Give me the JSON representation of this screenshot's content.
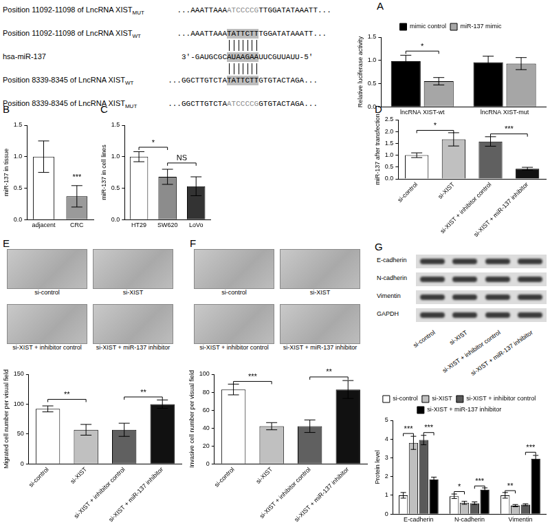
{
  "panel_letters": [
    "A",
    "B",
    "C",
    "D",
    "E",
    "F",
    "G"
  ],
  "sequence_alignment": {
    "rows": [
      {
        "label": "Position 11092-11098 of LncRNA XIST",
        "subscript": "MUT",
        "before": "...AAATTAAA",
        "site": "ATCCCCG",
        "after": "TTGGATATAAATT...",
        "site_style": "mutated"
      },
      {
        "label": "Position 11092-11098 of LncRNA XIST",
        "subscript": "WT",
        "before": "...AAATTAAA",
        "site": "TATTCTT",
        "after": "TGGATATAAATT...",
        "site_style": "highlighted"
      },
      {
        "label": "hsa-miR-137",
        "subscript": null,
        "before": "3'-GAUGCGC",
        "site": "AUAAGAA",
        "after": "UUCGUUAUU-5'",
        "site_style": "highlighted"
      },
      {
        "label": "Position 8339-8345 of LncRNA XIST",
        "subscript": "WT",
        "before": "...GGCTTGTCTA",
        "site": "TATTCTT",
        "after": "GTGTACTAGA...",
        "site_style": "highlighted"
      },
      {
        "label": "Position 8339-8345 of LncRNA XIST",
        "subscript": "MUT",
        "before": "...GGCTTGTCTA",
        "site": "ATCCCCG",
        "after": "GTGTACTAGA...",
        "site_style": "mutated"
      }
    ],
    "pairing": [
      [
        1,
        2
      ],
      [
        2,
        3
      ]
    ]
  },
  "image_panels": [
    {
      "captions": [
        "si-control",
        "si-XIST",
        "si-XIST + inhibitor control",
        "si-XIST + miR-137 inhibitor"
      ]
    },
    {
      "captions": [
        "si-control",
        "si-XIST",
        "si-XIST + inhibitor control",
        "si-XIST + miR-137 inhibitor"
      ]
    }
  ],
  "western_blot": {
    "proteins": [
      "E-cadherin",
      "N-cadherin",
      "Vimentin",
      "GAPDH"
    ],
    "lanes": [
      "si-control",
      "si-XIST",
      "si-XIST + inhibitor control",
      "si-XIST + miR-137 inhibitor"
    ]
  },
  "chart_data": [
    {
      "type": "bar",
      "y_label": "Relative luciferase activity",
      "categories": [
        "lncRNA XIST-wt",
        "lncRNA XIST-mut"
      ],
      "series": [
        {
          "name": "mimic control",
          "color": "#000000",
          "values": [
            0.98,
            0.96
          ],
          "errors": [
            0.13,
            0.13
          ]
        },
        {
          "name": "miR-137 mimic",
          "color": "#a6a6a6",
          "values": [
            0.55,
            0.93
          ],
          "errors": [
            0.08,
            0.13
          ]
        }
      ],
      "ylim": [
        0,
        1.5
      ],
      "yticks": [
        {
          "value": 0,
          "label": "0.0"
        },
        0.5,
        {
          "value": 1,
          "label": "1.0"
        },
        1.5
      ],
      "grid": false,
      "legend": "top",
      "annotations": [
        {
          "text": "*",
          "from": [
            0,
            0
          ],
          "to": [
            1,
            0
          ],
          "y": 1.2
        }
      ]
    },
    {
      "type": "bar",
      "y_label": "miR-137 in tissue",
      "categories": [
        "adjacent",
        "CRC"
      ],
      "values": [
        1.0,
        0.37
      ],
      "errors": [
        0.25,
        0.17
      ],
      "colors": [
        "#ffffff",
        "#9a9a9a"
      ],
      "ylim": [
        0,
        1.5
      ],
      "yticks": [
        {
          "value": 0,
          "label": "0.0"
        },
        0.5,
        {
          "value": 1,
          "label": "1.0"
        },
        1.5
      ],
      "grid": false,
      "annotations": [
        {
          "text": "***",
          "from": [
            0,
            1
          ],
          "y": 0.6
        }
      ]
    },
    {
      "type": "bar",
      "y_label": "miR-137 in cell lines",
      "categories": [
        "HT29",
        "SW620",
        "LoVo"
      ],
      "values": [
        1.0,
        0.68,
        0.53
      ],
      "errors": [
        0.08,
        0.12,
        0.15
      ],
      "colors": [
        "#ffffff",
        "#8c8c8c",
        "#333333"
      ],
      "ylim": [
        0,
        1.5
      ],
      "yticks": [
        {
          "value": 0,
          "label": "0.0"
        },
        0.5,
        {
          "value": 1,
          "label": "1.0"
        },
        1.5
      ],
      "grid": false,
      "annotations": [
        {
          "text": "*",
          "from": [
            0,
            0
          ],
          "to": [
            0,
            1
          ],
          "y": 1.15
        },
        {
          "text": "NS",
          "from": [
            0,
            1
          ],
          "to": [
            0,
            2
          ],
          "y": 0.9
        }
      ]
    },
    {
      "type": "bar",
      "y_label": "miR-137 after transfection",
      "categories": [
        "si-control",
        "si-XIST",
        "si-XIST + inhibitor control",
        "si-XIST + miR-137 inhibitor"
      ],
      "values": [
        1.0,
        1.67,
        1.58,
        0.43
      ],
      "errors": [
        0.1,
        0.28,
        0.2,
        0.06
      ],
      "colors": [
        "#ffffff",
        "#c0c0c0",
        "#606060",
        "#111111"
      ],
      "ylim": [
        0,
        2.5
      ],
      "yticks": [
        {
          "value": 0,
          "label": "0.0"
        },
        0.5,
        {
          "value": 1,
          "label": "1.0"
        },
        1.5,
        {
          "value": 2,
          "label": "2.0"
        },
        2.5
      ],
      "grid": false,
      "annotations": [
        {
          "text": "*",
          "from": [
            0,
            0
          ],
          "to": [
            0,
            1
          ],
          "y": 2.05
        },
        {
          "text": "***",
          "from": [
            0,
            2
          ],
          "to": [
            0,
            3
          ],
          "y": 1.9
        }
      ]
    },
    {
      "type": "bar",
      "y_label": "Migrated cell number per visual field",
      "categories": [
        "si-control",
        "si-XIST",
        "si-XIST + inhibitor control",
        "si-XIST + miR-137 inhibitor"
      ],
      "values": [
        92,
        57,
        57,
        100
      ],
      "errors": [
        5,
        9,
        11,
        7
      ],
      "colors": [
        "#ffffff",
        "#c0c0c0",
        "#606060",
        "#111111"
      ],
      "ylim": [
        0,
        150
      ],
      "yticks": [
        0,
        50,
        100,
        150
      ],
      "grid": false,
      "annotations": [
        {
          "text": "**",
          "from": [
            0,
            0
          ],
          "to": [
            0,
            1
          ],
          "y": 108
        },
        {
          "text": "**",
          "from": [
            0,
            2
          ],
          "to": [
            0,
            3
          ],
          "y": 112
        }
      ]
    },
    {
      "type": "bar",
      "y_label": "Invasive cell number per visual field",
      "categories": [
        "si-control",
        "si-XIST",
        "si-XIST + inhibitor control",
        "si-XIST + miR-137 inhibitor"
      ],
      "values": [
        83,
        42,
        42,
        83
      ],
      "errors": [
        6,
        4,
        7,
        10
      ],
      "colors": [
        "#ffffff",
        "#c0c0c0",
        "#606060",
        "#111111"
      ],
      "ylim": [
        0,
        100
      ],
      "yticks": [
        0,
        20,
        40,
        60,
        80,
        100
      ],
      "grid": false,
      "annotations": [
        {
          "text": "***",
          "from": [
            0,
            0
          ],
          "to": [
            0,
            1
          ],
          "y": 92
        },
        {
          "text": "**",
          "from": [
            0,
            2
          ],
          "to": [
            0,
            3
          ],
          "y": 97
        }
      ]
    },
    {
      "type": "bar",
      "y_label": "Protein level",
      "categories": [
        "E-cadherin",
        "N-cadherin",
        "Vimentin"
      ],
      "series": [
        {
          "name": "si-control",
          "color": "#ffffff",
          "values": [
            1.0,
            0.95,
            1.0
          ],
          "errors": [
            0.15,
            0.12,
            0.15
          ]
        },
        {
          "name": "si-XIST",
          "color": "#bfbfbf",
          "values": [
            3.8,
            0.6,
            0.45
          ],
          "errors": [
            0.35,
            0.08,
            0.06
          ]
        },
        {
          "name": "si-XIST + inhibitor control",
          "color": "#595959",
          "values": [
            3.95,
            0.58,
            0.5
          ],
          "errors": [
            0.25,
            0.07,
            0.05
          ]
        },
        {
          "name": "si-XIST + miR-137 inhibitor",
          "color": "#000000",
          "values": [
            1.85,
            1.3,
            2.95
          ],
          "errors": [
            0.12,
            0.1,
            0.18
          ]
        }
      ],
      "ylim": [
        0,
        5
      ],
      "yticks": [
        0,
        1,
        2,
        3,
        4,
        5
      ],
      "grid": false,
      "legend": "top",
      "annotations": [
        {
          "text": "***",
          "from": [
            0,
            0
          ],
          "to": [
            1,
            0
          ],
          "y": 4.3
        },
        {
          "text": "***",
          "from": [
            2,
            0
          ],
          "to": [
            3,
            0
          ],
          "y": 4.35
        },
        {
          "text": "*",
          "from": [
            0,
            1
          ],
          "to": [
            1,
            1
          ],
          "y": 1.2
        },
        {
          "text": "***",
          "from": [
            2,
            1
          ],
          "to": [
            3,
            1
          ],
          "y": 1.5
        },
        {
          "text": "**",
          "from": [
            0,
            2
          ],
          "to": [
            1,
            2
          ],
          "y": 1.25
        },
        {
          "text": "***",
          "from": [
            2,
            2
          ],
          "to": [
            3,
            2
          ],
          "y": 3.3
        }
      ]
    }
  ]
}
